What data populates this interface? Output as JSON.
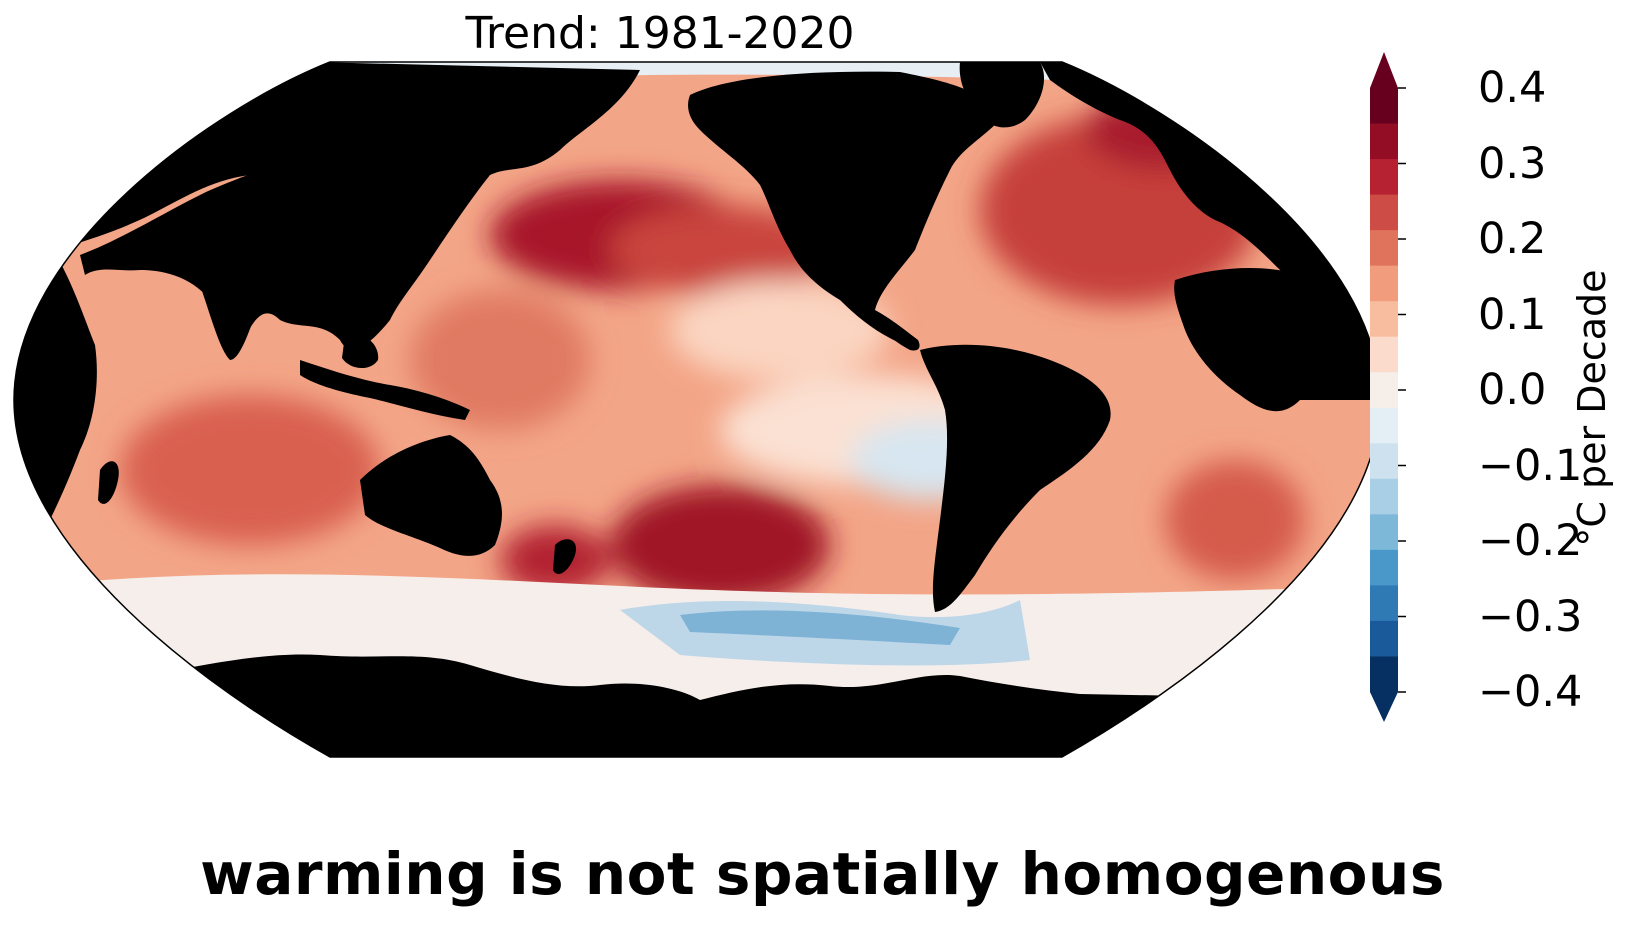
{
  "title": "Trend: 1981-2020",
  "colorbar": {
    "label": "°C per Decade",
    "ticks": [
      "0.4",
      "0.3",
      "0.2",
      "0.1",
      "0.0",
      "−0.1",
      "−0.2",
      "−0.3",
      "−0.4"
    ],
    "range": [
      -0.4,
      0.4
    ],
    "extend": "both",
    "colors": [
      "#053061",
      "#1b5a9a",
      "#2f79b5",
      "#4a98c9",
      "#7db8d9",
      "#a8cfe5",
      "#cde2ee",
      "#e4eef5",
      "#f6eee9",
      "#fbdccc",
      "#f8bd9f",
      "#f19c7c",
      "#e0735c",
      "#cd4c46",
      "#b62232",
      "#930d25",
      "#67001f"
    ]
  },
  "caption": "warming is not spatially homogenous"
}
